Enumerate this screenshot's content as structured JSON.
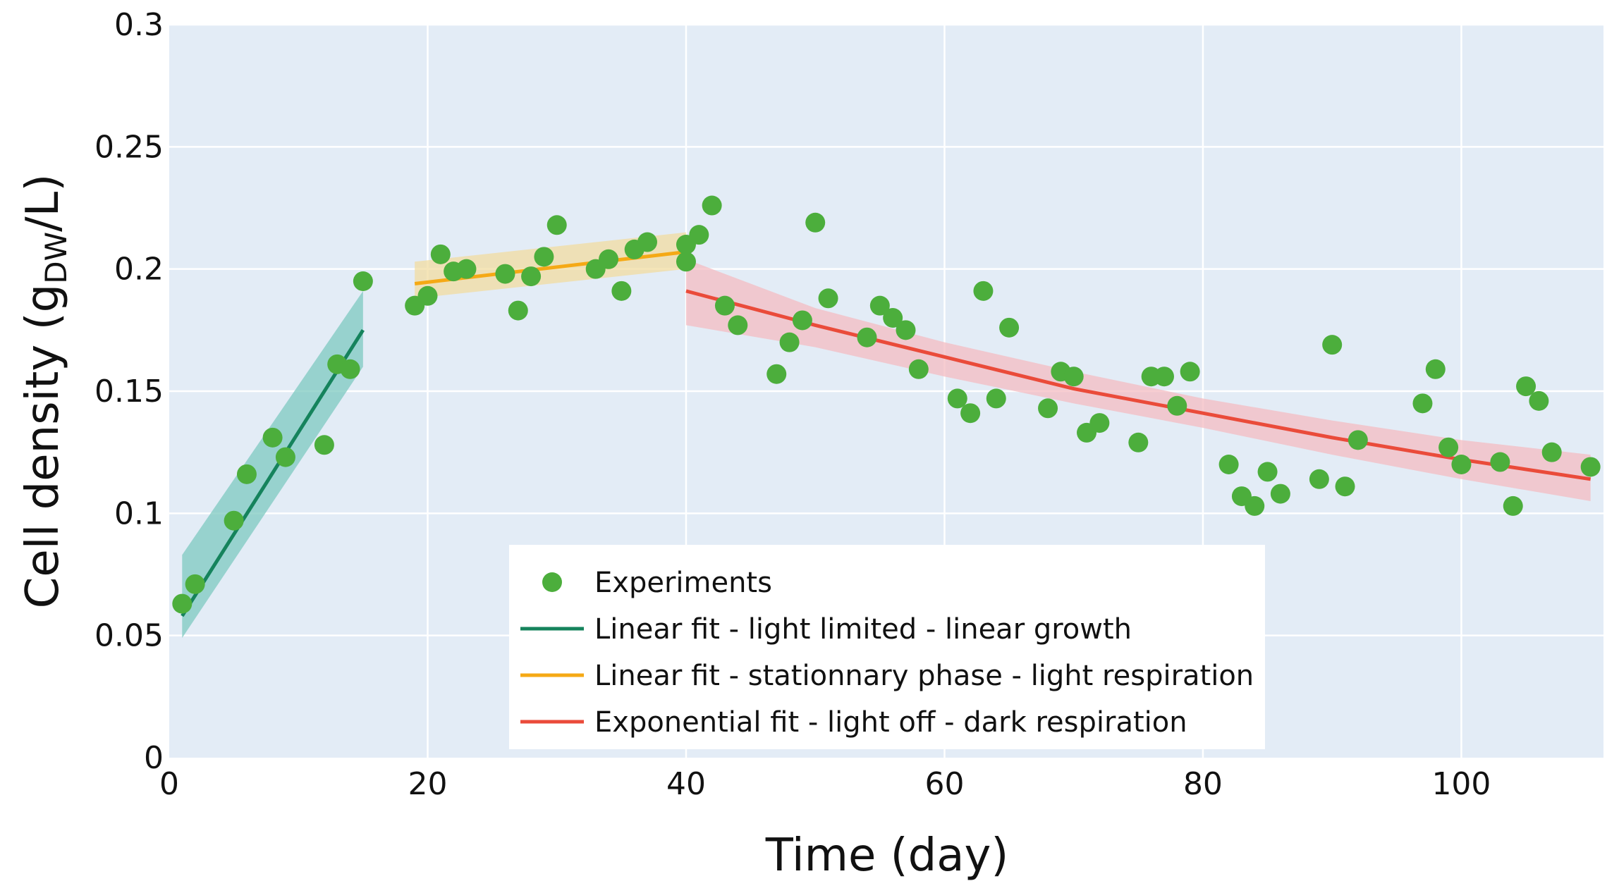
{
  "chart_data": {
    "type": "scatter",
    "xlabel": "Time (day)",
    "ylabel": {
      "main": "Cell density (g",
      "sub": "DW",
      "end": "/L)"
    },
    "xlim": [
      0,
      111
    ],
    "ylim": [
      0,
      0.3
    ],
    "xticks": [
      0,
      20,
      40,
      60,
      80,
      100
    ],
    "xtick_labels": [
      "0",
      "20",
      "40",
      "60",
      "80",
      "100"
    ],
    "yticks": [
      0,
      0.05,
      0.1,
      0.15,
      0.2,
      0.25,
      0.3
    ],
    "ytick_labels": [
      "0",
      "0.05",
      "0.1",
      "0.15",
      "0.2",
      "0.25",
      "0.3"
    ],
    "grid": true,
    "legend_position": "bottom-center",
    "colors": {
      "plot_bg": "#e3ecf6",
      "grid": "#ffffff",
      "experiments": "#4cae3c",
      "linear_growth": "#15835c",
      "stationary": "#f5a915",
      "dark": "#ea4b3a",
      "band_growth": "#7ec9c0",
      "band_stationary": "#f1dca0",
      "band_dark": "#f4bcc2"
    },
    "series": [
      {
        "name": "Experiments",
        "kind": "scatter",
        "points": [
          [
            1,
            0.063
          ],
          [
            2,
            0.071
          ],
          [
            5,
            0.097
          ],
          [
            6,
            0.116
          ],
          [
            8,
            0.131
          ],
          [
            9,
            0.123
          ],
          [
            12,
            0.128
          ],
          [
            13,
            0.161
          ],
          [
            14,
            0.159
          ],
          [
            15,
            0.195
          ],
          [
            19,
            0.185
          ],
          [
            20,
            0.189
          ],
          [
            21,
            0.206
          ],
          [
            22,
            0.199
          ],
          [
            23,
            0.2
          ],
          [
            26,
            0.198
          ],
          [
            27,
            0.183
          ],
          [
            28,
            0.197
          ],
          [
            29,
            0.205
          ],
          [
            30,
            0.218
          ],
          [
            33,
            0.2
          ],
          [
            34,
            0.204
          ],
          [
            35,
            0.191
          ],
          [
            36,
            0.208
          ],
          [
            37,
            0.211
          ],
          [
            40,
            0.203
          ],
          [
            40,
            0.21
          ],
          [
            41,
            0.214
          ],
          [
            42,
            0.226
          ],
          [
            43,
            0.185
          ],
          [
            44,
            0.177
          ],
          [
            47,
            0.157
          ],
          [
            48,
            0.17
          ],
          [
            49,
            0.179
          ],
          [
            50,
            0.219
          ],
          [
            51,
            0.188
          ],
          [
            54,
            0.172
          ],
          [
            55,
            0.185
          ],
          [
            56,
            0.18
          ],
          [
            57,
            0.175
          ],
          [
            58,
            0.159
          ],
          [
            61,
            0.147
          ],
          [
            62,
            0.141
          ],
          [
            63,
            0.191
          ],
          [
            64,
            0.147
          ],
          [
            65,
            0.176
          ],
          [
            68,
            0.143
          ],
          [
            69,
            0.158
          ],
          [
            70,
            0.156
          ],
          [
            71,
            0.133
          ],
          [
            72,
            0.137
          ],
          [
            75,
            0.129
          ],
          [
            76,
            0.156
          ],
          [
            77,
            0.156
          ],
          [
            78,
            0.144
          ],
          [
            79,
            0.158
          ],
          [
            82,
            0.12
          ],
          [
            83,
            0.107
          ],
          [
            84,
            0.103
          ],
          [
            85,
            0.117
          ],
          [
            86,
            0.108
          ],
          [
            89,
            0.114
          ],
          [
            90,
            0.169
          ],
          [
            91,
            0.111
          ],
          [
            92,
            0.13
          ],
          [
            97,
            0.145
          ],
          [
            98,
            0.159
          ],
          [
            99,
            0.127
          ],
          [
            100,
            0.12
          ],
          [
            103,
            0.121
          ],
          [
            104,
            0.103
          ],
          [
            105,
            0.152
          ],
          [
            106,
            0.146
          ],
          [
            107,
            0.125
          ],
          [
            110,
            0.119
          ]
        ]
      },
      {
        "name": "Linear fit - light limited - linear growth",
        "kind": "line",
        "color_key": "linear_growth",
        "band_key": "band_growth",
        "points": [
          [
            1,
            0.058
          ],
          [
            15,
            0.175
          ]
        ],
        "band": {
          "x": [
            1,
            15
          ],
          "lower": [
            0.049,
            0.16
          ],
          "upper": [
            0.083,
            0.191
          ]
        }
      },
      {
        "name": "Linear fit - stationnary phase - light respiration",
        "kind": "line",
        "color_key": "stationary",
        "band_key": "band_stationary",
        "points": [
          [
            19,
            0.194
          ],
          [
            40,
            0.207
          ]
        ],
        "band": {
          "x": [
            19,
            40
          ],
          "lower": [
            0.188,
            0.2
          ],
          "upper": [
            0.203,
            0.215
          ]
        }
      },
      {
        "name": "Exponential fit - light off - dark respiration",
        "kind": "line",
        "color_key": "dark",
        "band_key": "band_dark",
        "points": [
          [
            40,
            0.191
          ],
          [
            50,
            0.177
          ],
          [
            60,
            0.164
          ],
          [
            70,
            0.151
          ],
          [
            80,
            0.141
          ],
          [
            90,
            0.131
          ],
          [
            100,
            0.122
          ],
          [
            110,
            0.114
          ]
        ],
        "band": {
          "x": [
            40,
            50,
            60,
            70,
            80,
            90,
            100,
            110
          ],
          "lower": [
            0.177,
            0.168,
            0.156,
            0.145,
            0.135,
            0.124,
            0.114,
            0.105
          ],
          "upper": [
            0.204,
            0.184,
            0.17,
            0.158,
            0.147,
            0.138,
            0.13,
            0.124
          ]
        }
      }
    ]
  }
}
